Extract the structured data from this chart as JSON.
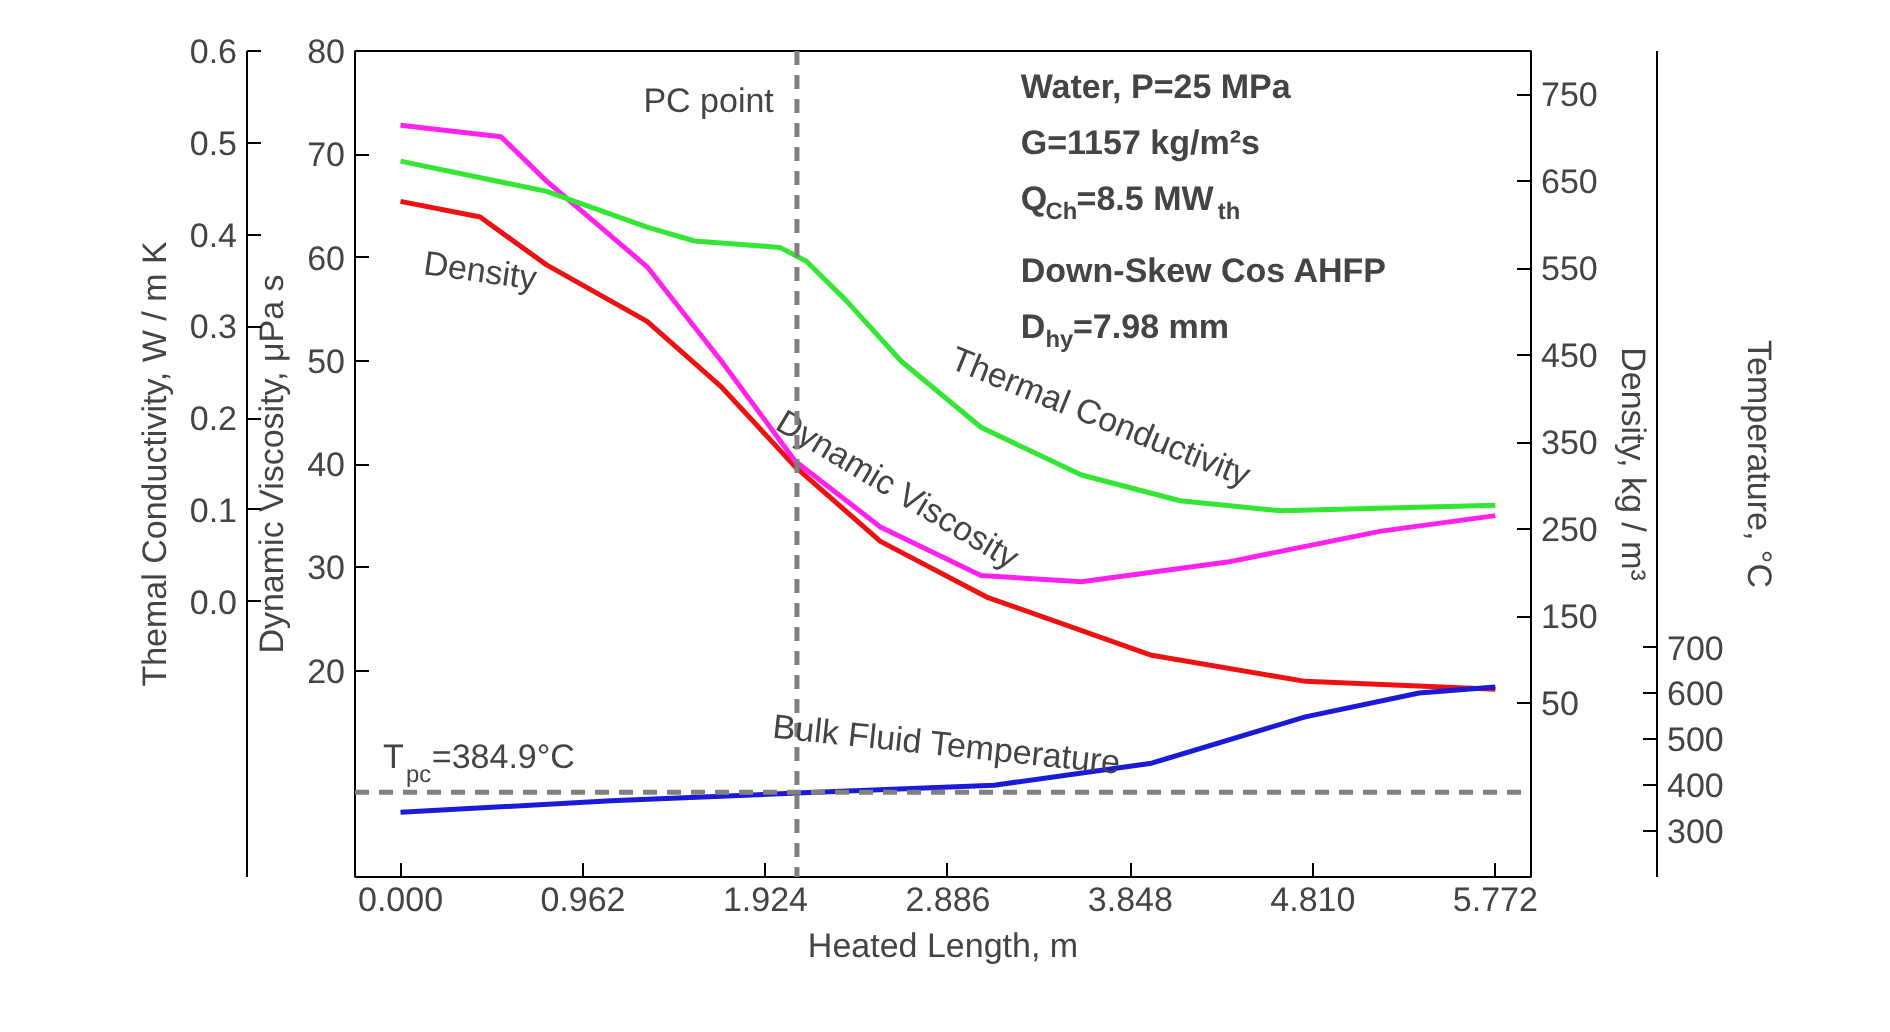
{
  "chart_data": [
    {
      "type": "line",
      "xlabel": "Heated Length, m",
      "ylabel": "Dynamic Viscosity, μPa s",
      "y2label": "Density, kg / m³",
      "y3label": "Themal Conductivity, W / m K",
      "xlim": [
        -0.24,
        5.96
      ],
      "xticks": [
        {
          "value": 0,
          "label": "0.000"
        },
        0.962,
        1.924,
        2.886,
        3.848,
        {
          "value": 4.81,
          "label": "4.810"
        },
        5.772
      ],
      "ylim": [
        0,
        80
      ],
      "yticks": [
        20,
        30,
        40,
        50,
        60,
        70,
        80
      ],
      "y2lim": [
        -150,
        800
      ],
      "y2ticks": [
        50,
        150,
        250,
        350,
        450,
        550,
        650,
        750
      ],
      "y3lim": [
        -0.3,
        0.6
      ],
      "y3ticks": [
        {
          "value": 0,
          "label": "0.0"
        },
        0.1,
        0.2,
        0.3,
        0.4,
        0.5,
        0.6
      ],
      "grid": false,
      "line_style": "solid",
      "marker": "none",
      "series": [
        {
          "name": "Density",
          "color": "#ee1111",
          "axis": "y2",
          "x": [
            0,
            0.42,
            0.77,
            1.3,
            1.69,
            2.08,
            2.53,
            3.09,
            3.96,
            4.77,
            5.772
          ],
          "values": [
            627,
            609,
            554,
            489,
            414,
            322,
            236,
            172,
            105,
            75,
            66
          ]
        },
        {
          "name": "Dynamic Viscosity",
          "color": "#ff22ee",
          "x": [
            0,
            0.53,
            0.77,
            1.3,
            1.69,
            2.08,
            2.53,
            3.06,
            3.59,
            4.36,
            5.17,
            5.772
          ],
          "values": [
            72.8,
            71.7,
            67.4,
            59.1,
            50.0,
            40.3,
            33.9,
            29.2,
            28.6,
            30.5,
            33.5,
            35.0
          ]
        },
        {
          "name": "Thermal Conductivity",
          "color": "#33e633",
          "axis": "y3",
          "x": [
            0,
            0.77,
            1.3,
            1.55,
            2.0,
            2.14,
            2.35,
            2.64,
            3.06,
            3.59,
            4.11,
            4.64,
            5.772
          ],
          "values": [
            0.48,
            0.447,
            0.408,
            0.393,
            0.386,
            0.371,
            0.328,
            0.262,
            0.19,
            0.138,
            0.11,
            0.099,
            0.105
          ]
        }
      ],
      "ref_lines": [
        {
          "axis": "x",
          "value": 2.09,
          "label": "PC point",
          "color": "#808080",
          "line_style": "dashed"
        }
      ],
      "annotations": [
        "Water, P=25 MPa",
        "G=1157 kg/m²s",
        "Q$_{Ch}$=8.5 MW$_{th}$",
        "Down-Skew Cos AHFP",
        "D$_{hy}$=7.98 mm"
      ]
    },
    {
      "type": "line",
      "ylabel": "Temperature, °C",
      "tick_labels": "y",
      "xlim": [
        -0.24,
        5.96
      ],
      "ylim": [
        200,
        2000
      ],
      "yticks": [
        300,
        400,
        500,
        600,
        700
      ],
      "line_style": "solid",
      "marker": "none",
      "series": [
        {
          "name": "Bulk Fluid Temperature",
          "color": "#1a1ad8",
          "x": [
            0,
            1.11,
            2.09,
            3.13,
            3.96,
            4.77,
            5.37,
            5.772
          ],
          "values": [
            341,
            366,
            383,
            400,
            448,
            549,
            601,
            614
          ]
        }
      ],
      "ref_lines": [
        {
          "axis": "y",
          "value": 384.9,
          "label": "T$_{pc}$=384.9°C",
          "color": "#808080",
          "line_style": "dashed"
        }
      ]
    }
  ]
}
